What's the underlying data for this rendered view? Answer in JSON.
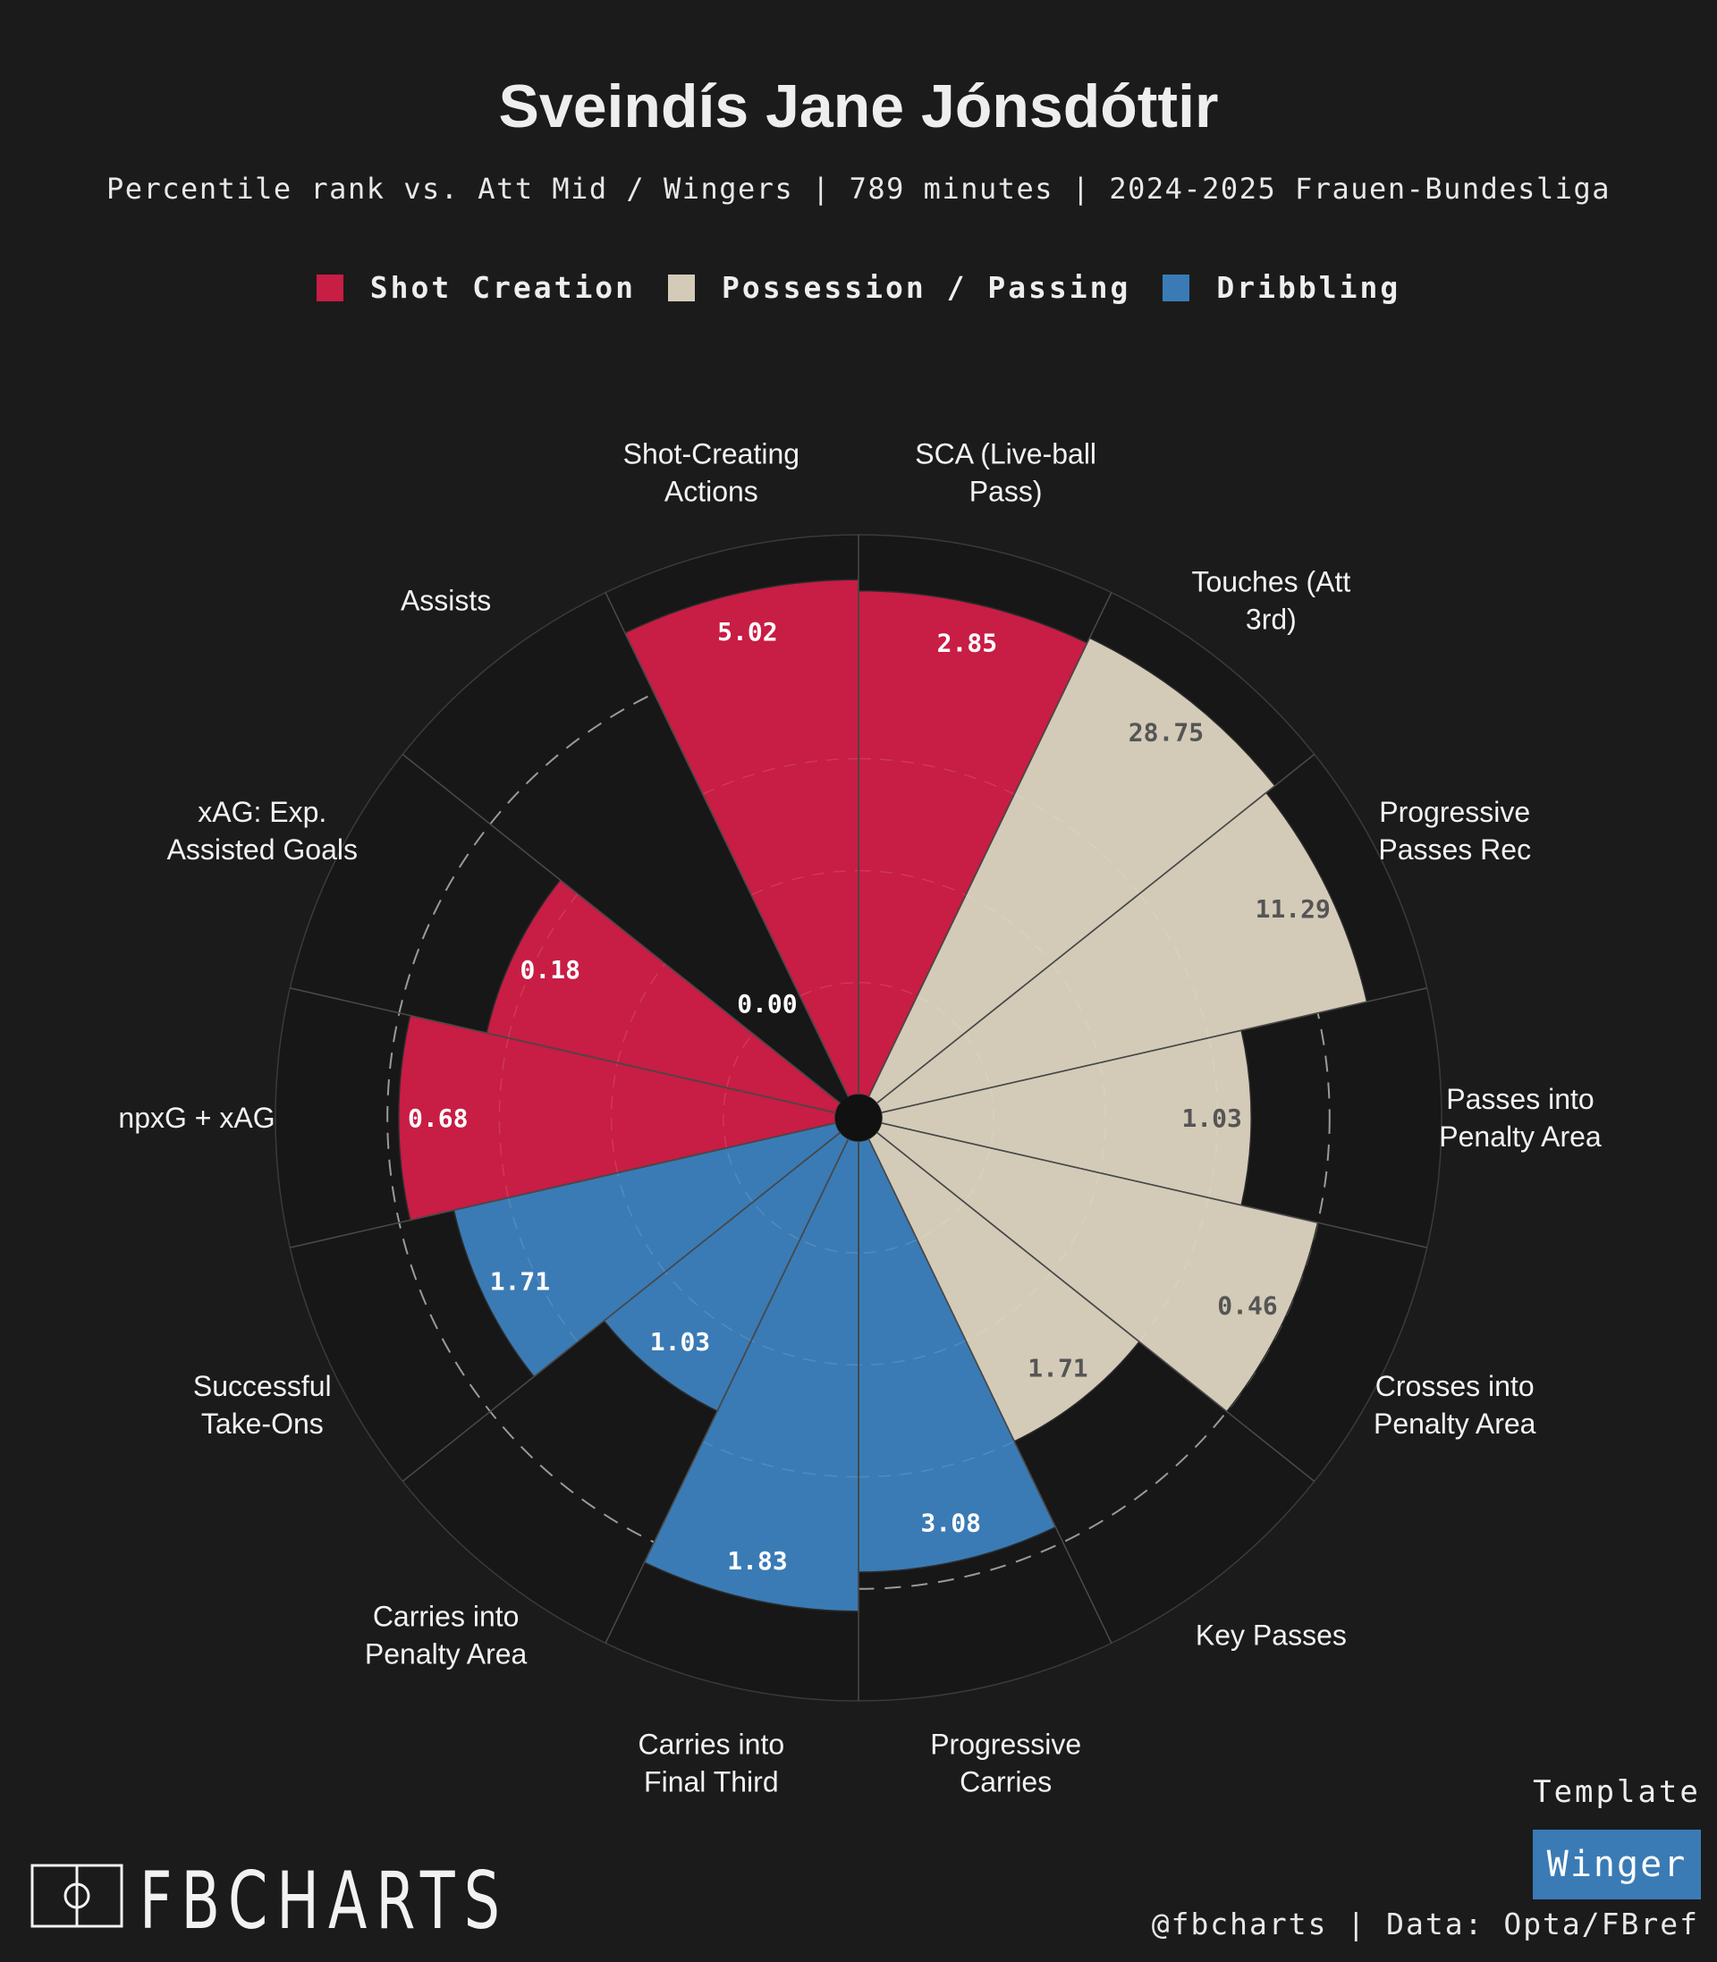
{
  "header": {
    "title": "Sveindís Jane Jónsdóttir",
    "subtitle": "Percentile rank vs. Att Mid / Wingers | 789 minutes | 2024-2025 Frauen-Bundesliga"
  },
  "legend": [
    {
      "label": "Shot Creation",
      "color": "#c81d44"
    },
    {
      "label": "Possession / Passing",
      "color": "#d3cbb8"
    },
    {
      "label": "Dribbling",
      "color": "#3a7bb5"
    }
  ],
  "chart_data": {
    "type": "polar-bar",
    "categories": [
      "SCA (Live-ball Pass)",
      "Touches (Att 3rd)",
      "Progressive Passes Rec",
      "Passes into Penalty Area",
      "Crosses into Penalty Area",
      "Key Passes",
      "Progressive Carries",
      "Carries into Final Third",
      "Carries into Penalty Area",
      "Successful Take-Ons",
      "npxG + xAG",
      "xAG: Exp. Assisted Goals",
      "Assists",
      "Shot-Creating Actions"
    ],
    "label_lines": [
      [
        "SCA (Live-ball",
        "Pass)"
      ],
      [
        "Touches (Att",
        "3rd)"
      ],
      [
        "Progressive",
        "Passes Rec"
      ],
      [
        "Passes into",
        "Penalty Area"
      ],
      [
        "Crosses into",
        "Penalty Area"
      ],
      [
        "Key Passes"
      ],
      [
        "Progressive",
        "Carries"
      ],
      [
        "Carries into",
        "Final Third"
      ],
      [
        "Carries into",
        "Penalty Area"
      ],
      [
        "Successful",
        "Take-Ons"
      ],
      [
        "npxG + xAG"
      ],
      [
        "xAG: Exp.",
        "Assisted Goals"
      ],
      [
        "Assists"
      ],
      [
        "Shot-Creating",
        "Actions"
      ]
    ],
    "groups": [
      "Shot Creation",
      "Possession / Passing",
      "Possession / Passing",
      "Possession / Passing",
      "Possession / Passing",
      "Possession / Passing",
      "Dribbling",
      "Dribbling",
      "Dribbling",
      "Dribbling",
      "Shot Creation",
      "Shot Creation",
      "Shot Creation",
      "Shot Creation"
    ],
    "percentiles": [
      90,
      91,
      89,
      66,
      80,
      60,
      77,
      84,
      54,
      70,
      78,
      64,
      0,
      92
    ],
    "value_labels": [
      "2.85",
      "28.75",
      "11.29",
      "1.03",
      "0.46",
      "1.71",
      "3.08",
      "1.83",
      "1.03",
      "1.71",
      "0.68",
      "0.18",
      "0.00",
      "5.02"
    ],
    "rlim": [
      0,
      100
    ],
    "reference_ring": 80
  },
  "footer": {
    "logo_text": "FBCHARTS",
    "template_label": "Template",
    "template_value": "Winger",
    "template_color": "#3a7bb5",
    "credits": "@fbcharts | Data: Opta/FBref"
  }
}
